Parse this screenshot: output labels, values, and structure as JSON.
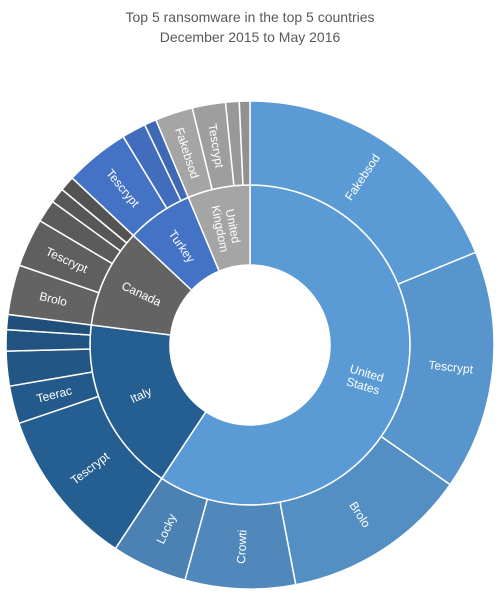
{
  "chart_data": {
    "type": "sunburst",
    "title": "Top 5 ransomware in the top 5 countries",
    "subtitle": "December 2015 to May 2016",
    "colors": {
      "United States": "#5b9bd5",
      "Italy": "#255e91",
      "Canada": "#636363",
      "Turkey": "#4472c4",
      "United Kingdom": "#a5a5a5"
    },
    "hierarchy": [
      {
        "name": "United States",
        "value": 59.3,
        "children": [
          {
            "name": "Fakebsod",
            "value": 18.8
          },
          {
            "name": "Tescrypt",
            "value": 15.9
          },
          {
            "name": "Brolo",
            "value": 12.3
          },
          {
            "name": "Crowti",
            "value": 7.3
          },
          {
            "name": "Locky",
            "value": 5.0
          }
        ]
      },
      {
        "name": "Italy",
        "value": 17.7,
        "children": [
          {
            "name": "Tescrypt",
            "value": 10.5
          },
          {
            "name": "Teerac",
            "value": 2.5
          },
          {
            "name": "",
            "value": 2.3
          },
          {
            "name": "",
            "value": 1.4
          },
          {
            "name": "",
            "value": 1.0
          }
        ]
      },
      {
        "name": "Canada",
        "value": 10.0,
        "children": [
          {
            "name": "Brolo",
            "value": 3.3
          },
          {
            "name": "Tescrypt",
            "value": 3.2
          },
          {
            "name": "",
            "value": 1.5
          },
          {
            "name": "",
            "value": 1.0
          },
          {
            "name": "",
            "value": 1.0
          }
        ]
      },
      {
        "name": "Turkey",
        "value": 6.7,
        "children": [
          {
            "name": "Tescrypt",
            "value": 4.3
          },
          {
            "name": "",
            "value": 1.6
          },
          {
            "name": "",
            "value": 0.8
          }
        ]
      },
      {
        "name": "United Kingdom",
        "value": 6.3,
        "children": [
          {
            "name": "Fakebsod",
            "value": 2.5
          },
          {
            "name": "Tescrypt",
            "value": 2.2
          },
          {
            "name": "",
            "value": 0.9
          },
          {
            "name": "",
            "value": 0.7
          }
        ]
      }
    ]
  }
}
